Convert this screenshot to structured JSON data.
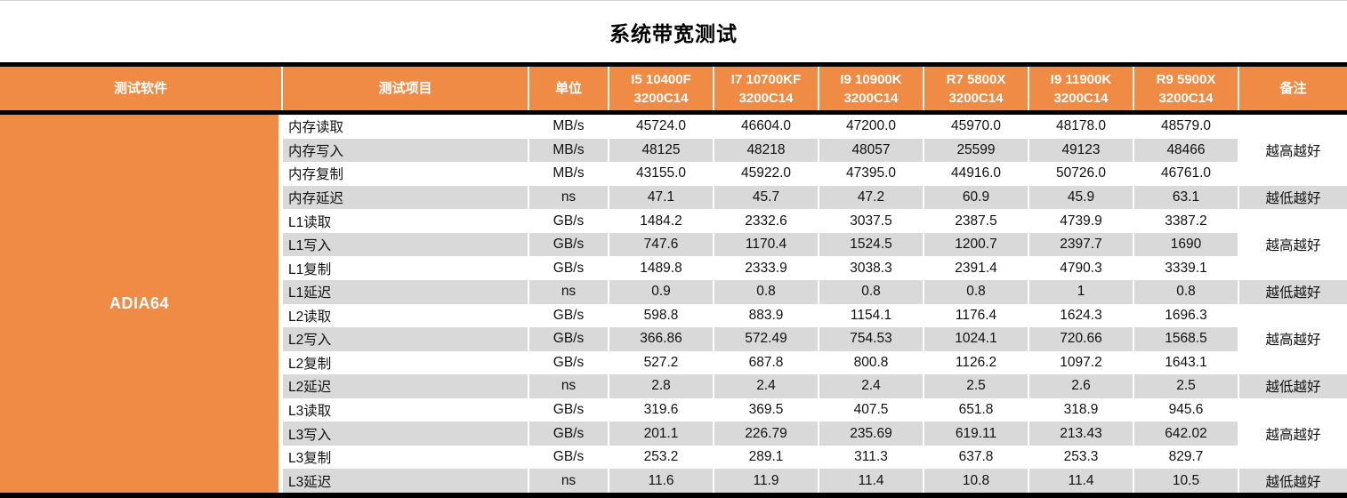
{
  "colors": {
    "accent_orange": "#EF8B45",
    "row_alt_gray": "#D9D9D9",
    "bar_black": "#000000"
  },
  "chart_data": {
    "type": "table",
    "title": "系统带宽测试",
    "headers": {
      "software": "测试软件",
      "item": "测试项目",
      "unit": "单位",
      "cpus": [
        {
          "model": "I5 10400F",
          "ram": "3200C14"
        },
        {
          "model": "I7 10700KF",
          "ram": "3200C14"
        },
        {
          "model": "I9 10900K",
          "ram": "3200C14"
        },
        {
          "model": "R7 5800X",
          "ram": "3200C14"
        },
        {
          "model": "I9 11900K",
          "ram": "3200C14"
        },
        {
          "model": "R9 5900X",
          "ram": "3200C14"
        }
      ],
      "remark": "备注"
    },
    "software_name": "ADIA64",
    "remark_higher": "越高越好",
    "remark_lower": "越低越好",
    "groups": [
      {
        "name": "内存",
        "rows": [
          {
            "item": "内存读取",
            "unit": "MB/s",
            "values": [
              "45724.0",
              "46604.0",
              "47200.0",
              "45970.0",
              "48178.0",
              "48579.0"
            ]
          },
          {
            "item": "内存写入",
            "unit": "MB/s",
            "values": [
              "48125",
              "48218",
              "48057",
              "25599",
              "49123",
              "48466"
            ]
          },
          {
            "item": "内存复制",
            "unit": "MB/s",
            "values": [
              "43155.0",
              "45922.0",
              "47395.0",
              "44916.0",
              "50726.0",
              "46761.0"
            ]
          },
          {
            "item": "内存延迟",
            "unit": "ns",
            "values": [
              "47.1",
              "45.7",
              "47.2",
              "60.9",
              "45.9",
              "63.1"
            ]
          }
        ]
      },
      {
        "name": "L1",
        "rows": [
          {
            "item": "L1读取",
            "unit": "GB/s",
            "values": [
              "1484.2",
              "2332.6",
              "3037.5",
              "2387.5",
              "4739.9",
              "3387.2"
            ]
          },
          {
            "item": "L1写入",
            "unit": "GB/s",
            "values": [
              "747.6",
              "1170.4",
              "1524.5",
              "1200.7",
              "2397.7",
              "1690"
            ]
          },
          {
            "item": "L1复制",
            "unit": "GB/s",
            "values": [
              "1489.8",
              "2333.9",
              "3038.3",
              "2391.4",
              "4790.3",
              "3339.1"
            ]
          },
          {
            "item": "L1延迟",
            "unit": "ns",
            "values": [
              "0.9",
              "0.8",
              "0.8",
              "0.8",
              "1",
              "0.8"
            ]
          }
        ]
      },
      {
        "name": "L2",
        "rows": [
          {
            "item": "L2读取",
            "unit": "GB/s",
            "values": [
              "598.8",
              "883.9",
              "1154.1",
              "1176.4",
              "1624.3",
              "1696.3"
            ]
          },
          {
            "item": "L2写入",
            "unit": "GB/s",
            "values": [
              "366.86",
              "572.49",
              "754.53",
              "1024.1",
              "720.66",
              "1568.5"
            ]
          },
          {
            "item": "L2复制",
            "unit": "GB/s",
            "values": [
              "527.2",
              "687.8",
              "800.8",
              "1126.2",
              "1097.2",
              "1643.1"
            ]
          },
          {
            "item": "L2延迟",
            "unit": "ns",
            "values": [
              "2.8",
              "2.4",
              "2.4",
              "2.5",
              "2.6",
              "2.5"
            ]
          }
        ]
      },
      {
        "name": "L3",
        "rows": [
          {
            "item": "L3读取",
            "unit": "GB/s",
            "values": [
              "319.6",
              "369.5",
              "407.5",
              "651.8",
              "318.9",
              "945.6"
            ]
          },
          {
            "item": "L3写入",
            "unit": "GB/s",
            "values": [
              "201.1",
              "226.79",
              "235.69",
              "619.11",
              "213.43",
              "642.02"
            ]
          },
          {
            "item": "L3复制",
            "unit": "GB/s",
            "values": [
              "253.2",
              "289.1",
              "311.3",
              "637.8",
              "253.3",
              "829.7"
            ]
          },
          {
            "item": "L3延迟",
            "unit": "ns",
            "values": [
              "11.6",
              "11.9",
              "11.4",
              "10.8",
              "11.4",
              "10.5"
            ]
          }
        ]
      }
    ]
  }
}
